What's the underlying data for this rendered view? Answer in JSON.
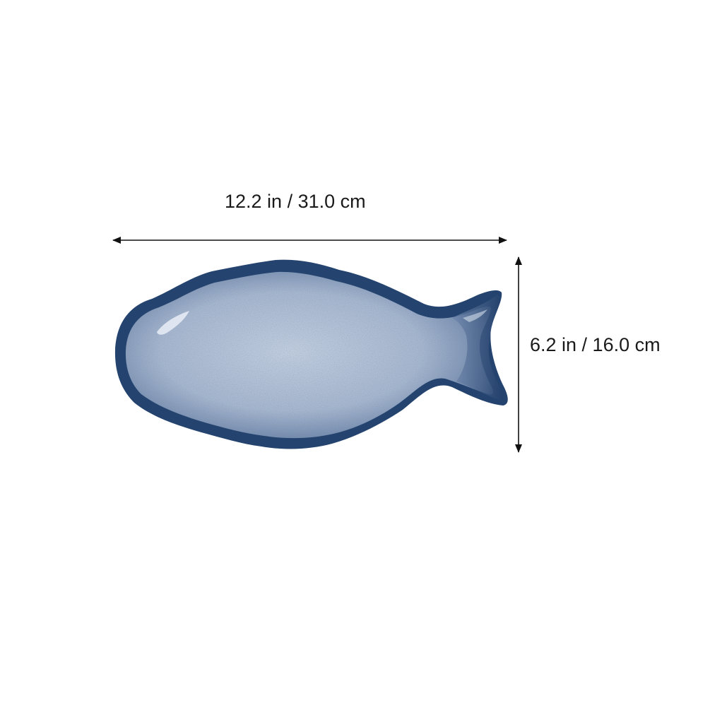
{
  "dimensions": {
    "width_label": "12.2 in / 31.0 cm",
    "height_label": "6.2 in / 16.0 cm"
  },
  "product": {
    "shape": "fish-shaped plate",
    "glaze_colors": {
      "rim": "#1f3a63",
      "body": "#8ea3c0",
      "highlight": "#c7d3e4"
    }
  },
  "colors": {
    "arrow": "#111111",
    "background": "#ffffff"
  }
}
